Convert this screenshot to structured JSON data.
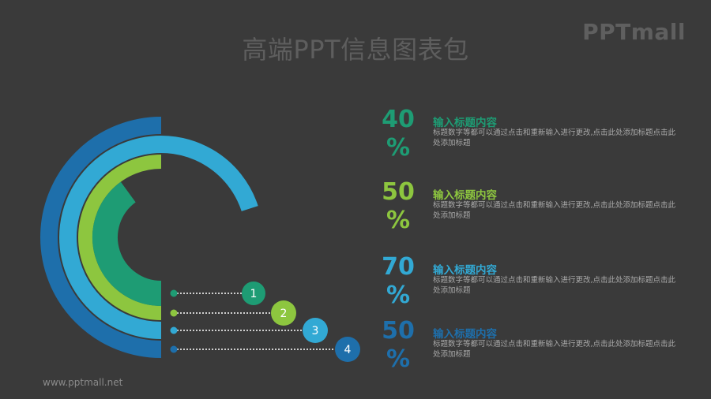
{
  "page": {
    "title": "高端PPT信息图表包",
    "logo": "PPTmall",
    "footer": "www.pptmall.net"
  },
  "colors": {
    "background": "#3a3a3a",
    "teal": "#1e9c74",
    "green": "#8dc63f",
    "light_blue": "#32a9d4",
    "blue": "#1e6fab"
  },
  "chart_data": {
    "type": "radial-bar",
    "series": [
      {
        "marker": "1",
        "value": 40,
        "color": "#1e9c74"
      },
      {
        "marker": "2",
        "value": 50,
        "color": "#8dc63f"
      },
      {
        "marker": "3",
        "value": 70,
        "color": "#32a9d4"
      },
      {
        "marker": "4",
        "value": 50,
        "color": "#1e6fab"
      }
    ]
  },
  "items": [
    {
      "value": "40",
      "unit": "%",
      "title": "输入标题内容",
      "desc": "标题数字等都可以通过点击和重新输入进行更改,点击此处添加标题点击此处添加标题",
      "color": "#1e9c74"
    },
    {
      "value": "50",
      "unit": "%",
      "title": "输入标题内容",
      "desc": "标题数字等都可以通过点击和重新输入进行更改,点击此处添加标题点击此处添加标题",
      "color": "#8dc63f"
    },
    {
      "value": "70",
      "unit": "%",
      "title": "输入标题内容",
      "desc": "标题数字等都可以通过点击和重新输入进行更改,点击此处添加标题点击此处添加标题",
      "color": "#32a9d4"
    },
    {
      "value": "50",
      "unit": "%",
      "title": "输入标题内容",
      "desc": "标题数字等都可以通过点击和重新输入进行更改,点击此处添加标题点击此处添加标题",
      "color": "#1e6fab"
    }
  ]
}
